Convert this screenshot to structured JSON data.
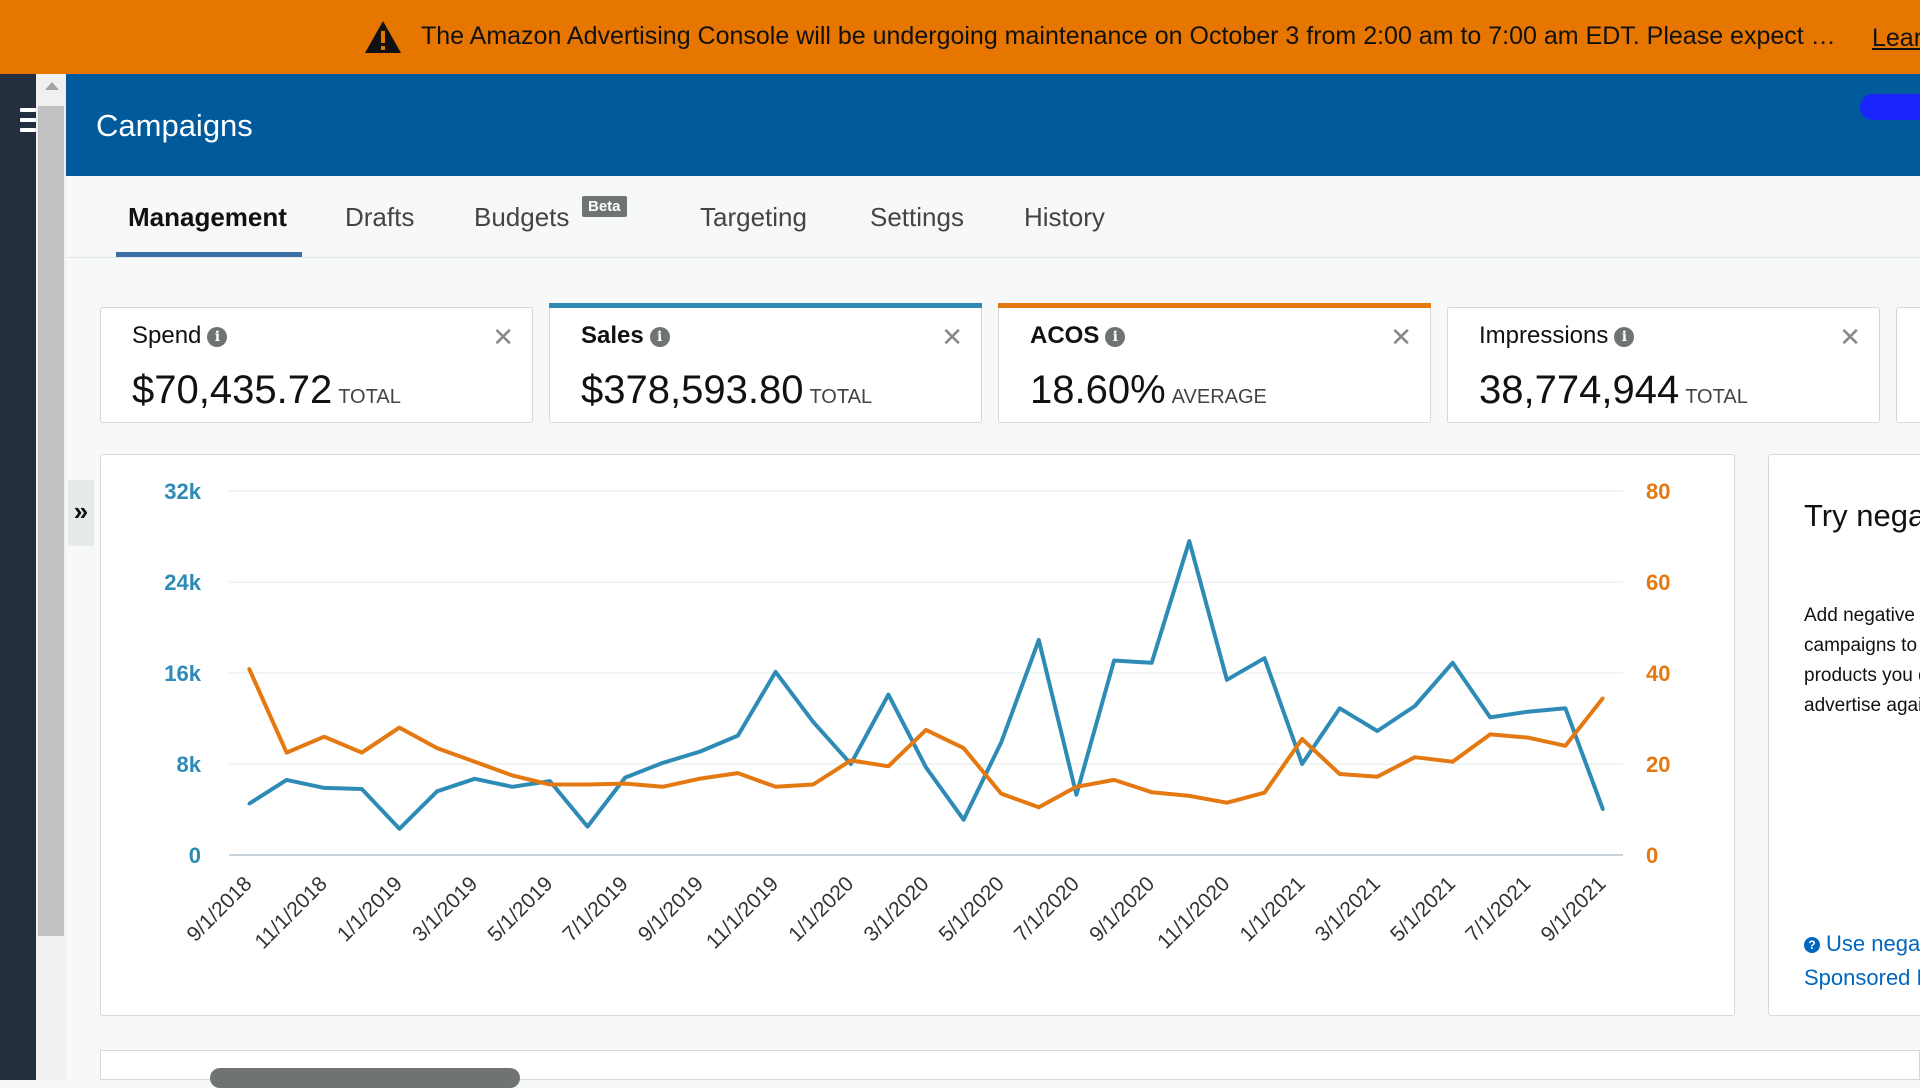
{
  "banner": {
    "message": "The Amazon Advertising Console will be undergoing maintenance on October 3 from 2:00 am to 7:00 am EDT. Please expect …",
    "link": "Lear",
    "color": "#e77600"
  },
  "header": {
    "title": "Campaigns",
    "color": "#005a9c"
  },
  "tabs": [
    {
      "label": "Management",
      "active": true
    },
    {
      "label": "Drafts"
    },
    {
      "label": "Budgets",
      "badge": "Beta"
    },
    {
      "label": "Targeting"
    },
    {
      "label": "Settings"
    },
    {
      "label": "History"
    }
  ],
  "metrics": [
    {
      "label": "Spend",
      "value": "$70,435.72",
      "unit": "TOTAL",
      "selected": false,
      "accent": ""
    },
    {
      "label": "Sales",
      "value": "$378,593.80",
      "unit": "TOTAL",
      "selected": true,
      "accent": "#2e8bb6"
    },
    {
      "label": "ACOS",
      "value": "18.60%",
      "unit": "AVERAGE",
      "selected": true,
      "accent": "#e47911"
    },
    {
      "label": "Impressions",
      "value": "38,774,944",
      "unit": "TOTAL",
      "selected": false,
      "accent": ""
    }
  ],
  "expander_icon": "»",
  "chart_data": {
    "type": "line",
    "x": [
      "9/1/2018",
      "10/1/2018",
      "11/1/2018",
      "12/1/2018",
      "1/1/2019",
      "2/1/2019",
      "3/1/2019",
      "4/1/2019",
      "5/1/2019",
      "6/1/2019",
      "7/1/2019",
      "8/1/2019",
      "9/1/2019",
      "10/1/2019",
      "11/1/2019",
      "12/1/2019",
      "1/1/2020",
      "2/1/2020",
      "3/1/2020",
      "4/1/2020",
      "5/1/2020",
      "6/1/2020",
      "7/1/2020",
      "8/1/2020",
      "9/1/2020",
      "10/1/2020",
      "11/1/2020",
      "12/1/2020",
      "1/1/2021",
      "2/1/2021",
      "3/1/2021",
      "4/1/2021",
      "5/1/2021",
      "6/1/2021",
      "7/1/2021",
      "8/1/2021",
      "9/1/2021"
    ],
    "xticks": [
      "9/1/2018",
      "11/1/2018",
      "1/1/2019",
      "3/1/2019",
      "5/1/2019",
      "7/1/2019",
      "9/1/2019",
      "11/1/2019",
      "1/1/2020",
      "3/1/2020",
      "5/1/2020",
      "7/1/2020",
      "9/1/2020",
      "11/1/2020",
      "1/1/2021",
      "3/1/2021",
      "5/1/2021",
      "7/1/2021",
      "9/1/2021"
    ],
    "series": [
      {
        "color": "#2e8bb6",
        "axis": "left",
        "values": [
          4500,
          6600,
          5900,
          5800,
          2300,
          5600,
          6700,
          6000,
          6500,
          2500,
          6800,
          8100,
          9100,
          10500,
          16100,
          11700,
          8000,
          14100,
          7700,
          3100,
          9900,
          18900,
          5300,
          17100,
          16900,
          27600,
          15400,
          17300,
          8000,
          12900,
          10900,
          13100,
          16900,
          12100,
          12600,
          12900,
          4000
        ]
      },
      {
        "color": "#e47911",
        "axis": "right",
        "values": [
          41,
          22.5,
          26,
          22.5,
          28,
          23.5,
          20.5,
          17.5,
          15.5,
          15.5,
          15.7,
          15,
          16.8,
          18,
          15,
          15.5,
          20.8,
          19.5,
          27.5,
          23.5,
          13.5,
          10.5,
          15,
          16.5,
          13.8,
          13,
          11.5,
          13.7,
          25.5,
          17.8,
          17.2,
          21.5,
          20.5,
          26.5,
          25.8,
          24,
          34.5
        ]
      }
    ],
    "yleft": {
      "ticks": [
        "0",
        "8k",
        "16k",
        "24k",
        "32k"
      ],
      "lim": [
        0,
        32000
      ]
    },
    "yright": {
      "ticks": [
        "0",
        "20",
        "40",
        "60",
        "80"
      ],
      "lim": [
        0,
        80
      ]
    },
    "grid": true
  },
  "promo": {
    "title": "Try negative targeting",
    "body": "Add negative keywords to campaigns to prevent your products you don't want to advertise against.",
    "link": "Use negative targeting in Sponsored Products"
  }
}
